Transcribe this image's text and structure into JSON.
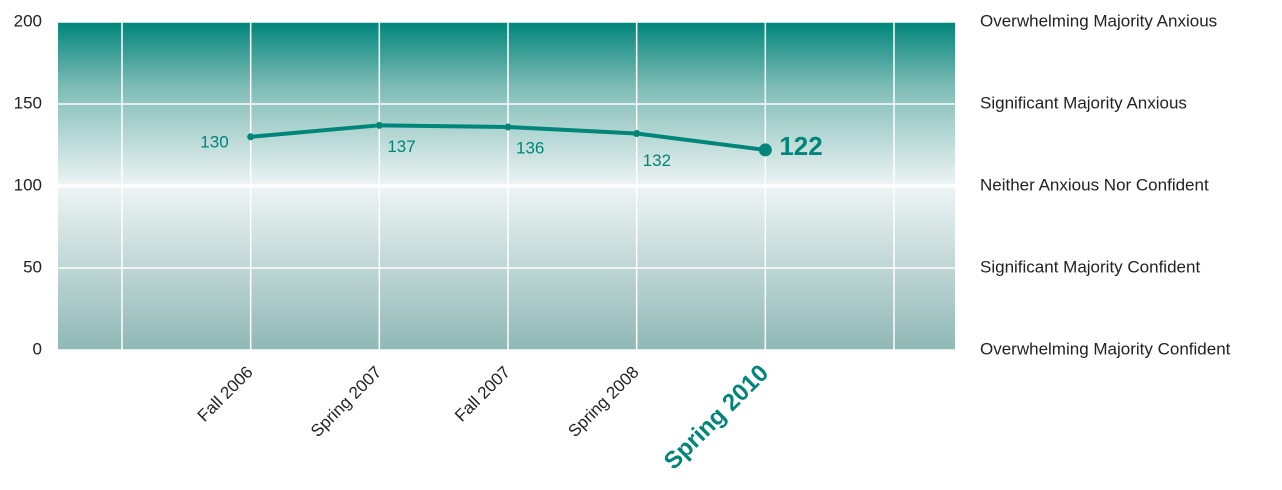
{
  "chart_data": {
    "type": "line",
    "categories": [
      null,
      "Fall 2006",
      "Spring 2007",
      "Fall 2007",
      "Spring 2008",
      "Spring 2010",
      null
    ],
    "series": [
      {
        "color": "#00857a",
        "values": [
          null,
          130,
          137,
          136,
          132,
          122,
          null
        ]
      }
    ],
    "ylim": [
      0,
      200
    ],
    "yticks": [
      0,
      50,
      100,
      150,
      200
    ],
    "grid": true,
    "scale_labels": [
      "Overwhelming Majority Confident",
      "Significant Majority Confident",
      "Neither Anxious Nor Confident",
      "Significant Majority Anxious",
      "Overwhelming Majority Anxious"
    ]
  }
}
